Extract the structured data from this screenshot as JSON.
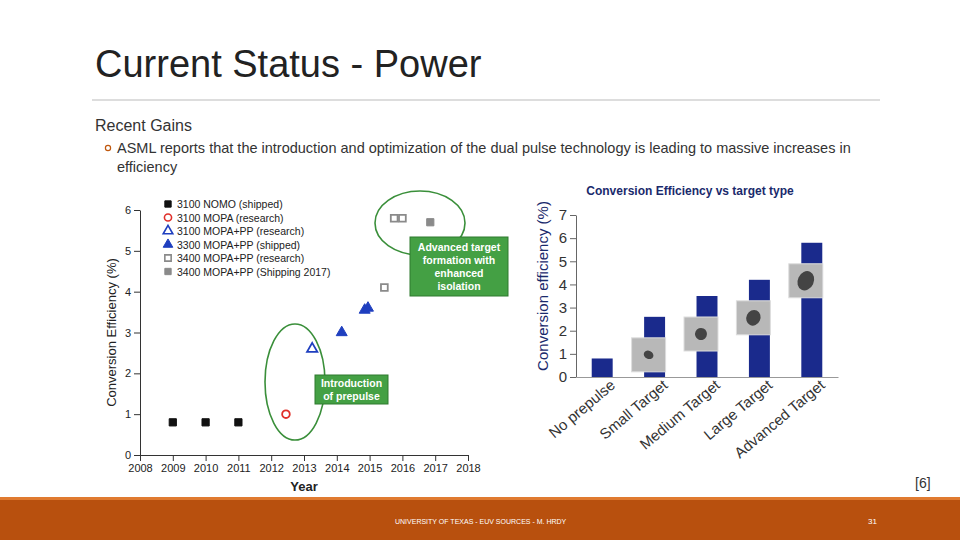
{
  "slide": {
    "title": "Current Status - Power",
    "subtitle": "Recent Gains",
    "bullet": "ASML reports that the introduction and optimization of the dual pulse technology is leading to massive increases in efficiency",
    "reference": "[6]",
    "footer": "UNIVERSITY OF TEXAS - EUV SOURCES - M. HRDY",
    "page": 31
  },
  "chart_data": [
    {
      "type": "scatter",
      "x_label": "Year",
      "y_label": "Conversion Efficiency (%)",
      "xlim": [
        2008,
        2018
      ],
      "xticks": [
        2008,
        2009,
        2010,
        2011,
        2012,
        2013,
        2014,
        2015,
        2016,
        2017,
        2018
      ],
      "ylim": [
        0,
        6
      ],
      "yticks": [
        0,
        1,
        2,
        3,
        4,
        5,
        6
      ],
      "legend": "upper left",
      "annotations": [
        "Advanced target formation with enhanced isolation",
        "Introduction of prepulse"
      ],
      "series": [
        {
          "name": "3100 NOMO (shipped)",
          "color": "#111111",
          "marker": "square",
          "x": [
            2009,
            2010,
            2011
          ],
          "values": [
            0.8,
            0.8,
            0.8
          ]
        },
        {
          "name": "3100 MOPA (research)",
          "color": "#e0302a",
          "marker": "circle-open",
          "x": [
            2012.45
          ],
          "values": [
            1.0
          ]
        },
        {
          "name": "3100 MOPA+PP (research)",
          "color": "#1f3fbf",
          "marker": "triangle-open",
          "x": [
            2013.25
          ],
          "values": [
            2.6
          ]
        },
        {
          "name": "3300 MOPA+PP (shipped)",
          "color": "#1f3fbf",
          "marker": "triangle",
          "x": [
            2014.15,
            2014.85,
            2014.95
          ],
          "values": [
            3.0,
            3.55,
            3.6
          ]
        },
        {
          "name": "3400 MOPA+PP (research)",
          "color": "#8a8a8a",
          "marker": "square-open",
          "x": [
            2015.45,
            2015.75,
            2016.0
          ],
          "values": [
            4.1,
            5.8,
            5.8
          ]
        },
        {
          "name": "3400 MOPA+PP (Shipping 2017)",
          "color": "#8a8a8a",
          "marker": "square",
          "x": [
            2016.85
          ],
          "values": [
            5.7
          ]
        }
      ]
    },
    {
      "type": "bar",
      "title": "Conversion Efficiency vs target type",
      "y_label": "Conversion efficiency (%)",
      "categories": [
        "No prepulse",
        "Small Target",
        "Medium Target",
        "Large Target",
        "Advanced Target"
      ],
      "values": [
        0.8,
        2.6,
        3.5,
        4.2,
        5.8
      ],
      "color": "#1a2a8c",
      "ylim": [
        0,
        7
      ],
      "yticks": [
        0,
        1,
        2,
        3,
        4,
        5,
        6,
        7
      ]
    }
  ]
}
